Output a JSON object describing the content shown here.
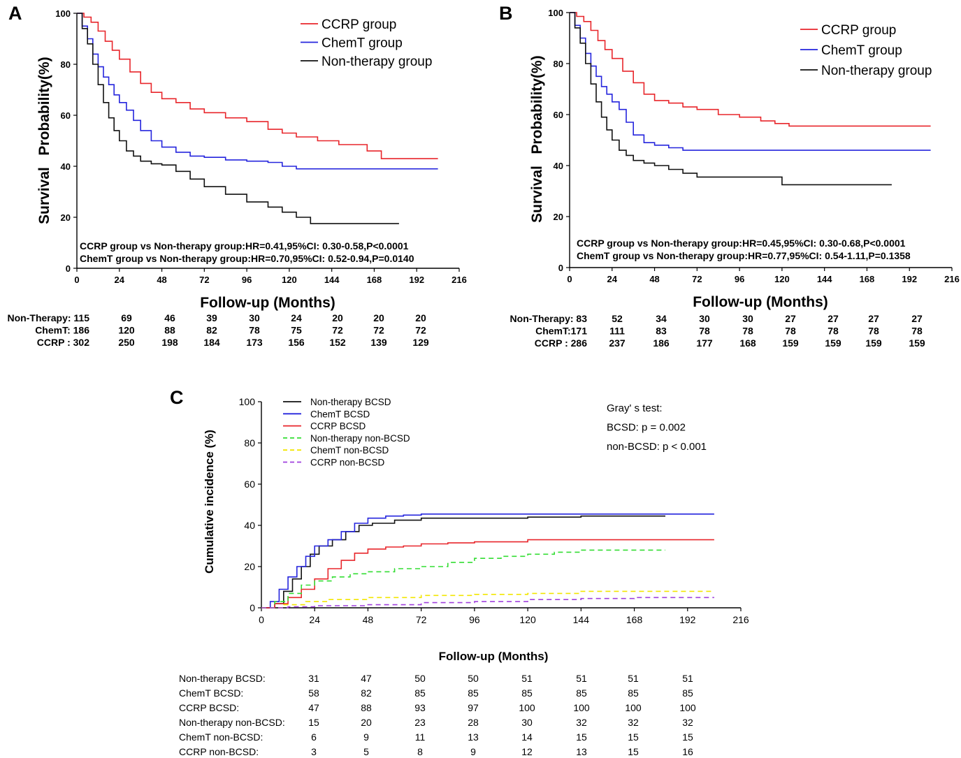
{
  "chart_data": [
    {
      "panel": "A",
      "type": "line",
      "title": "",
      "xlabel": "Follow-up (Months)",
      "ylabel_parts": [
        "Survival",
        "Probability(%)"
      ],
      "xlim": [
        0,
        216
      ],
      "ylim": [
        0,
        100
      ],
      "xticks": [
        0,
        24,
        48,
        72,
        96,
        120,
        144,
        168,
        192,
        216
      ],
      "yticks": [
        0,
        20,
        40,
        60,
        80,
        100
      ],
      "legend": [
        "CCRP group",
        "ChemT group",
        "Non-therapy group"
      ],
      "annotations": [
        "CCRP  group vs Non-therapy group:HR=0.41,95%CI: 0.30-0.58,P<0.0001",
        "ChemT group vs Non-therapy group:HR=0.70,95%CI: 0.52-0.94,P=0.0140"
      ],
      "series": [
        {
          "name": "CCRP group",
          "color": "#e8262b",
          "x": [
            0,
            4,
            8,
            12,
            16,
            20,
            24,
            30,
            36,
            42,
            48,
            56,
            64,
            72,
            84,
            96,
            108,
            116,
            124,
            136,
            148,
            164,
            172,
            204
          ],
          "y": [
            100,
            98.5,
            96.5,
            93,
            89,
            85.5,
            82,
            77,
            72.5,
            69,
            66.5,
            65,
            62.5,
            61,
            59,
            57.5,
            54.5,
            53,
            51.5,
            50,
            48.5,
            46,
            43,
            43
          ]
        },
        {
          "name": "ChemT group",
          "color": "#2525dd",
          "x": [
            0,
            3,
            6,
            9,
            12,
            15,
            18,
            21,
            24,
            28,
            32,
            36,
            42,
            48,
            56,
            64,
            72,
            84,
            96,
            108,
            116,
            124,
            204
          ],
          "y": [
            100,
            95,
            90,
            84,
            79,
            75,
            72,
            68,
            65,
            62,
            58,
            54,
            50,
            47.5,
            45.5,
            44,
            43.5,
            42.5,
            42,
            41.5,
            40,
            39,
            39
          ]
        },
        {
          "name": "Non-therapy group",
          "color": "#111111",
          "x": [
            0,
            3,
            6,
            9,
            12,
            15,
            18,
            21,
            24,
            28,
            32,
            36,
            42,
            48,
            56,
            64,
            72,
            84,
            96,
            108,
            116,
            124,
            132,
            144,
            182
          ],
          "y": [
            100,
            94,
            88,
            80,
            72,
            65,
            59,
            54,
            50,
            46,
            44,
            42,
            41,
            40.5,
            38,
            35,
            32,
            29,
            26,
            24,
            22,
            20,
            17.5,
            17.5,
            17.5
          ]
        }
      ],
      "risk_table": [
        {
          "label": "Non-Therapy: 115",
          "values": [
            "69",
            "46",
            "39",
            "30",
            "24",
            "20",
            "20",
            "20"
          ]
        },
        {
          "label": "ChemT: 186",
          "values": [
            "120",
            "88",
            "82",
            "78",
            "75",
            "72",
            "72",
            "72"
          ]
        },
        {
          "label": "CCRP : 302",
          "values": [
            "250",
            "198",
            "184",
            "173",
            "156",
            "152",
            "139",
            "129"
          ]
        }
      ]
    },
    {
      "panel": "B",
      "type": "line",
      "title": "",
      "xlabel": "Follow-up (Months)",
      "ylabel_parts": [
        "Survival",
        "Probability(%)"
      ],
      "xlim": [
        0,
        216
      ],
      "ylim": [
        0,
        100
      ],
      "xticks": [
        0,
        24,
        48,
        72,
        96,
        120,
        144,
        168,
        192,
        216
      ],
      "yticks": [
        0,
        20,
        40,
        60,
        80,
        100
      ],
      "legend": [
        "CCRP group",
        "ChemT group",
        "Non-therapy group"
      ],
      "annotations": [
        "CCRP  group vs Non-therapy group:HR=0.45,95%CI: 0.30-0.68,P<0.0001",
        "ChemT group vs Non-therapy group:HR=0.77,95%CI: 0.54-1.11,P=0.1358"
      ],
      "series": [
        {
          "name": "CCRP group",
          "color": "#e8262b",
          "x": [
            0,
            4,
            8,
            12,
            16,
            20,
            24,
            30,
            36,
            42,
            48,
            56,
            64,
            72,
            84,
            96,
            108,
            116,
            124,
            204
          ],
          "y": [
            100,
            98.5,
            96.5,
            93,
            89,
            85.5,
            82,
            77,
            72.5,
            68,
            65.5,
            64.5,
            63,
            62,
            60,
            59,
            57.5,
            56.5,
            55.5,
            55.5
          ]
        },
        {
          "name": "ChemT group",
          "color": "#2525dd",
          "x": [
            0,
            3,
            6,
            9,
            12,
            15,
            18,
            21,
            24,
            28,
            32,
            36,
            42,
            48,
            56,
            64,
            72,
            204
          ],
          "y": [
            100,
            95,
            90,
            84,
            79,
            75,
            71,
            68,
            65,
            62,
            57,
            52,
            49,
            48,
            47,
            46,
            46,
            46
          ]
        },
        {
          "name": "Non-therapy group",
          "color": "#111111",
          "x": [
            0,
            3,
            6,
            9,
            12,
            15,
            18,
            21,
            24,
            28,
            32,
            36,
            42,
            48,
            56,
            64,
            72,
            120,
            182
          ],
          "y": [
            100,
            94,
            88,
            80,
            72,
            65,
            59,
            54,
            50,
            46,
            44,
            42,
            41,
            40,
            38.5,
            37,
            35.5,
            32.5,
            32.5
          ]
        }
      ],
      "risk_table": [
        {
          "label": "Non-Therapy: 83",
          "values": [
            "52",
            "34",
            "30",
            "30",
            "27",
            "27",
            "27",
            "27"
          ]
        },
        {
          "label": "ChemT:171",
          "values": [
            "111",
            "83",
            "78",
            "78",
            "78",
            "78",
            "78",
            "78"
          ]
        },
        {
          "label": "CCRP : 286",
          "values": [
            "237",
            "186",
            "177",
            "168",
            "159",
            "159",
            "159",
            "159"
          ]
        }
      ]
    },
    {
      "panel": "C",
      "type": "line",
      "title": "",
      "xlabel": "Follow-up (Months)",
      "ylabel": "Cumulative incidence (%)",
      "xlim": [
        0,
        216
      ],
      "ylim": [
        0,
        100
      ],
      "xticks": [
        0,
        24,
        48,
        72,
        96,
        120,
        144,
        168,
        192,
        216
      ],
      "yticks": [
        0,
        20,
        40,
        60,
        80,
        100
      ],
      "legend": [
        "Non-therapy BCSD",
        "ChemT BCSD",
        "CCRP BCSD",
        "Non-therapy non-BCSD",
        "ChemT non-BCSD",
        "CCRP non-BCSD"
      ],
      "annotations": [
        "Gray' s test:",
        "BCSD: p = 0.002",
        "non-BCSD: p < 0.001"
      ],
      "series": [
        {
          "name": "Non-therapy BCSD",
          "color": "#111111",
          "dash": false,
          "x": [
            0,
            6,
            10,
            14,
            18,
            22,
            26,
            32,
            38,
            44,
            50,
            60,
            72,
            96,
            120,
            144,
            182
          ],
          "y": [
            0,
            2,
            8,
            14,
            20,
            26,
            30,
            33,
            37,
            40,
            41,
            42.5,
            43.5,
            43.5,
            44,
            44.5,
            44.5
          ]
        },
        {
          "name": "ChemT BCSD",
          "color": "#2525dd",
          "dash": false,
          "x": [
            0,
            4,
            8,
            12,
            16,
            20,
            24,
            30,
            36,
            42,
            48,
            56,
            64,
            72,
            96,
            120,
            204
          ],
          "y": [
            0,
            3,
            9,
            15,
            20,
            25,
            30,
            33,
            37,
            41,
            43.5,
            44.5,
            45,
            45.5,
            45.5,
            45.5,
            45.5
          ]
        },
        {
          "name": "CCRP BCSD",
          "color": "#e8262b",
          "dash": false,
          "x": [
            0,
            6,
            12,
            18,
            24,
            30,
            36,
            42,
            48,
            56,
            64,
            72,
            84,
            96,
            120,
            144,
            204
          ],
          "y": [
            0,
            2,
            5,
            9,
            14,
            19,
            23,
            26.5,
            28.5,
            29.5,
            30,
            31,
            31.5,
            32,
            33,
            33,
            33
          ]
        },
        {
          "name": "Non-therapy non-BCSD",
          "color": "#33dd33",
          "dash": true,
          "x": [
            0,
            6,
            12,
            18,
            24,
            32,
            40,
            48,
            60,
            72,
            84,
            96,
            108,
            120,
            132,
            144,
            182
          ],
          "y": [
            0,
            3,
            7,
            11,
            13,
            15,
            16.5,
            17.5,
            19,
            20,
            22,
            24,
            25,
            26,
            27,
            28,
            28
          ]
        },
        {
          "name": "ChemT non-BCSD",
          "color": "#f2e600",
          "dash": true,
          "x": [
            0,
            10,
            20,
            30,
            48,
            72,
            96,
            120,
            144,
            168,
            204
          ],
          "y": [
            0,
            1.5,
            3,
            4,
            5,
            6,
            6.5,
            7,
            8,
            8,
            8
          ]
        },
        {
          "name": "CCRP non-BCSD",
          "color": "#a040dd",
          "dash": true,
          "x": [
            0,
            12,
            24,
            48,
            72,
            96,
            120,
            144,
            168,
            204
          ],
          "y": [
            0,
            0.5,
            1,
            1.5,
            2.5,
            3,
            4,
            4.5,
            5,
            5
          ]
        }
      ],
      "risk_table": [
        {
          "label": "Non-therapy BCSD:",
          "values": [
            "31",
            "47",
            "50",
            "50",
            "51",
            "51",
            "51",
            "51"
          ]
        },
        {
          "label": "ChemT BCSD:",
          "values": [
            "58",
            "82",
            "85",
            "85",
            "85",
            "85",
            "85",
            "85"
          ]
        },
        {
          "label": "CCRP BCSD:",
          "values": [
            "47",
            "88",
            "93",
            "97",
            "100",
            "100",
            "100",
            "100"
          ]
        },
        {
          "label": "Non-therapy non-BCSD:",
          "values": [
            "15",
            "20",
            "23",
            "28",
            "30",
            "32",
            "32",
            "32"
          ]
        },
        {
          "label": "ChemT non-BCSD:",
          "values": [
            "6",
            "9",
            "11",
            "13",
            "14",
            "15",
            "15",
            "15"
          ]
        },
        {
          "label": "CCRP non-BCSD:",
          "values": [
            "3",
            "5",
            "8",
            "9",
            "12",
            "13",
            "15",
            "16"
          ]
        }
      ]
    }
  ]
}
